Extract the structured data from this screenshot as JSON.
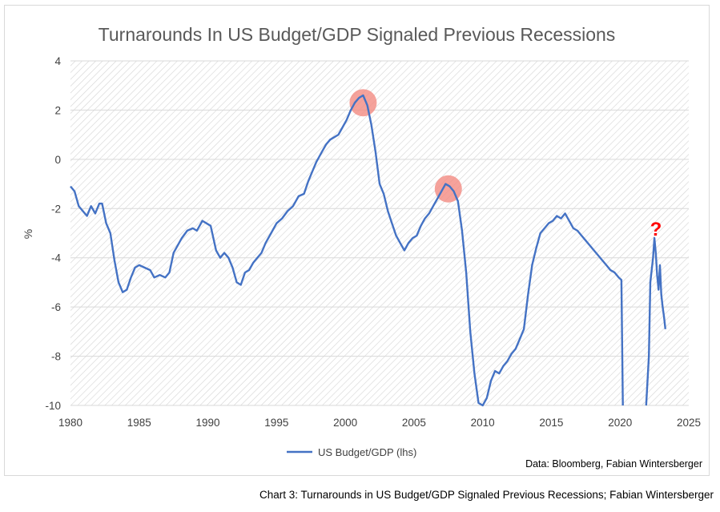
{
  "chart_data": {
    "type": "line",
    "title": "Turnarounds In US Budget/GDP Signaled Previous Recessions",
    "ylabel": "%",
    "xlabel": "",
    "xlim": [
      1980,
      2025
    ],
    "ylim": [
      -10,
      4
    ],
    "x_ticks": [
      "1980",
      "1985",
      "1990",
      "1995",
      "2000",
      "2005",
      "2010",
      "2015",
      "2020",
      "2025"
    ],
    "y_ticks": [
      "4",
      "2",
      "0",
      "-2",
      "-4",
      "-6",
      "-8",
      "-10"
    ],
    "grid": "horizontal",
    "background": "diagonal hatch",
    "legend_position": "bottom-center",
    "series": [
      {
        "name": "US Budget/GDP (lhs)",
        "color": "#4472c4",
        "points": [
          [
            1980.0,
            -1.1
          ],
          [
            1980.3,
            -1.3
          ],
          [
            1980.6,
            -1.9
          ],
          [
            1980.9,
            -2.1
          ],
          [
            1981.2,
            -2.3
          ],
          [
            1981.5,
            -1.9
          ],
          [
            1981.8,
            -2.2
          ],
          [
            1982.1,
            -1.8
          ],
          [
            1982.3,
            -1.8
          ],
          [
            1982.6,
            -2.6
          ],
          [
            1982.9,
            -3.0
          ],
          [
            1983.2,
            -4.1
          ],
          [
            1983.5,
            -5.0
          ],
          [
            1983.8,
            -5.4
          ],
          [
            1984.1,
            -5.3
          ],
          [
            1984.4,
            -4.8
          ],
          [
            1984.7,
            -4.4
          ],
          [
            1985.0,
            -4.3
          ],
          [
            1985.4,
            -4.4
          ],
          [
            1985.8,
            -4.5
          ],
          [
            1986.1,
            -4.8
          ],
          [
            1986.5,
            -4.7
          ],
          [
            1986.9,
            -4.8
          ],
          [
            1987.2,
            -4.6
          ],
          [
            1987.5,
            -3.8
          ],
          [
            1987.8,
            -3.5
          ],
          [
            1988.1,
            -3.2
          ],
          [
            1988.5,
            -2.9
          ],
          [
            1988.9,
            -2.8
          ],
          [
            1989.2,
            -2.9
          ],
          [
            1989.6,
            -2.5
          ],
          [
            1989.9,
            -2.6
          ],
          [
            1990.2,
            -2.7
          ],
          [
            1990.4,
            -3.2
          ],
          [
            1990.6,
            -3.7
          ],
          [
            1990.9,
            -4.0
          ],
          [
            1991.2,
            -3.8
          ],
          [
            1991.5,
            -4.0
          ],
          [
            1991.8,
            -4.4
          ],
          [
            1992.1,
            -5.0
          ],
          [
            1992.4,
            -5.1
          ],
          [
            1992.7,
            -4.6
          ],
          [
            1993.0,
            -4.5
          ],
          [
            1993.3,
            -4.2
          ],
          [
            1993.6,
            -4.0
          ],
          [
            1993.9,
            -3.8
          ],
          [
            1994.2,
            -3.4
          ],
          [
            1994.6,
            -3.0
          ],
          [
            1995.0,
            -2.6
          ],
          [
            1995.4,
            -2.4
          ],
          [
            1995.8,
            -2.1
          ],
          [
            1996.2,
            -1.9
          ],
          [
            1996.6,
            -1.5
          ],
          [
            1997.0,
            -1.4
          ],
          [
            1997.3,
            -0.9
          ],
          [
            1997.6,
            -0.5
          ],
          [
            1997.9,
            -0.1
          ],
          [
            1998.3,
            0.3
          ],
          [
            1998.6,
            0.6
          ],
          [
            1998.9,
            0.8
          ],
          [
            1999.2,
            0.9
          ],
          [
            1999.5,
            1.0
          ],
          [
            1999.8,
            1.3
          ],
          [
            2000.1,
            1.6
          ],
          [
            2000.4,
            2.0
          ],
          [
            2000.7,
            2.3
          ],
          [
            2001.0,
            2.5
          ],
          [
            2001.3,
            2.6
          ],
          [
            2001.6,
            2.2
          ],
          [
            2001.9,
            1.4
          ],
          [
            2002.2,
            0.3
          ],
          [
            2002.5,
            -1.0
          ],
          [
            2002.8,
            -1.4
          ],
          [
            2003.1,
            -2.1
          ],
          [
            2003.4,
            -2.6
          ],
          [
            2003.7,
            -3.1
          ],
          [
            2004.0,
            -3.4
          ],
          [
            2004.3,
            -3.7
          ],
          [
            2004.6,
            -3.4
          ],
          [
            2004.9,
            -3.2
          ],
          [
            2005.2,
            -3.1
          ],
          [
            2005.5,
            -2.7
          ],
          [
            2005.8,
            -2.4
          ],
          [
            2006.1,
            -2.2
          ],
          [
            2006.4,
            -1.9
          ],
          [
            2006.7,
            -1.6
          ],
          [
            2007.0,
            -1.3
          ],
          [
            2007.3,
            -1.0
          ],
          [
            2007.6,
            -1.1
          ],
          [
            2007.9,
            -1.3
          ],
          [
            2008.2,
            -1.7
          ],
          [
            2008.5,
            -2.9
          ],
          [
            2008.8,
            -4.6
          ],
          [
            2009.1,
            -7.0
          ],
          [
            2009.4,
            -8.7
          ],
          [
            2009.7,
            -9.9
          ],
          [
            2010.0,
            -10.0
          ],
          [
            2010.3,
            -9.7
          ],
          [
            2010.6,
            -9.0
          ],
          [
            2010.9,
            -8.6
          ],
          [
            2011.2,
            -8.7
          ],
          [
            2011.5,
            -8.4
          ],
          [
            2011.8,
            -8.2
          ],
          [
            2012.1,
            -7.9
          ],
          [
            2012.4,
            -7.7
          ],
          [
            2012.7,
            -7.3
          ],
          [
            2013.0,
            -6.9
          ],
          [
            2013.3,
            -5.5
          ],
          [
            2013.6,
            -4.3
          ],
          [
            2013.9,
            -3.6
          ],
          [
            2014.2,
            -3.0
          ],
          [
            2014.5,
            -2.8
          ],
          [
            2014.8,
            -2.6
          ],
          [
            2015.1,
            -2.5
          ],
          [
            2015.4,
            -2.3
          ],
          [
            2015.7,
            -2.4
          ],
          [
            2016.0,
            -2.2
          ],
          [
            2016.3,
            -2.5
          ],
          [
            2016.6,
            -2.8
          ],
          [
            2016.9,
            -2.9
          ],
          [
            2017.2,
            -3.1
          ],
          [
            2017.5,
            -3.3
          ],
          [
            2017.8,
            -3.5
          ],
          [
            2018.1,
            -3.7
          ],
          [
            2018.4,
            -3.9
          ],
          [
            2018.7,
            -4.1
          ],
          [
            2019.0,
            -4.3
          ],
          [
            2019.3,
            -4.5
          ],
          [
            2019.6,
            -4.6
          ],
          [
            2019.9,
            -4.8
          ],
          [
            2020.1,
            -4.9
          ],
          [
            2020.2,
            -10.0
          ]
        ],
        "points_segment2": [
          [
            2021.9,
            -10.0
          ],
          [
            2022.1,
            -8.0
          ],
          [
            2022.2,
            -5.0
          ],
          [
            2022.4,
            -4.0
          ],
          [
            2022.5,
            -3.2
          ],
          [
            2022.6,
            -3.8
          ],
          [
            2022.7,
            -4.7
          ],
          [
            2022.8,
            -5.3
          ],
          [
            2022.9,
            -4.3
          ],
          [
            2023.0,
            -5.5
          ],
          [
            2023.1,
            -6.0
          ],
          [
            2023.2,
            -6.4
          ],
          [
            2023.3,
            -6.9
          ]
        ]
      }
    ],
    "highlights": [
      {
        "x": 2001.3,
        "y": 2.3
      },
      {
        "x": 2007.5,
        "y": -1.2
      }
    ],
    "annotation": "?"
  },
  "source_text": "Data: Bloomberg, Fabian Wintersberger",
  "caption": "Chart 3: Turnarounds in US Budget/GDP Signaled Previous Recessions; Fabian Wintersberger",
  "colors": {
    "line": "#4472c4",
    "highlight": "#f28b82",
    "annotation": "#ff0000",
    "grid": "#d9d9d9"
  }
}
